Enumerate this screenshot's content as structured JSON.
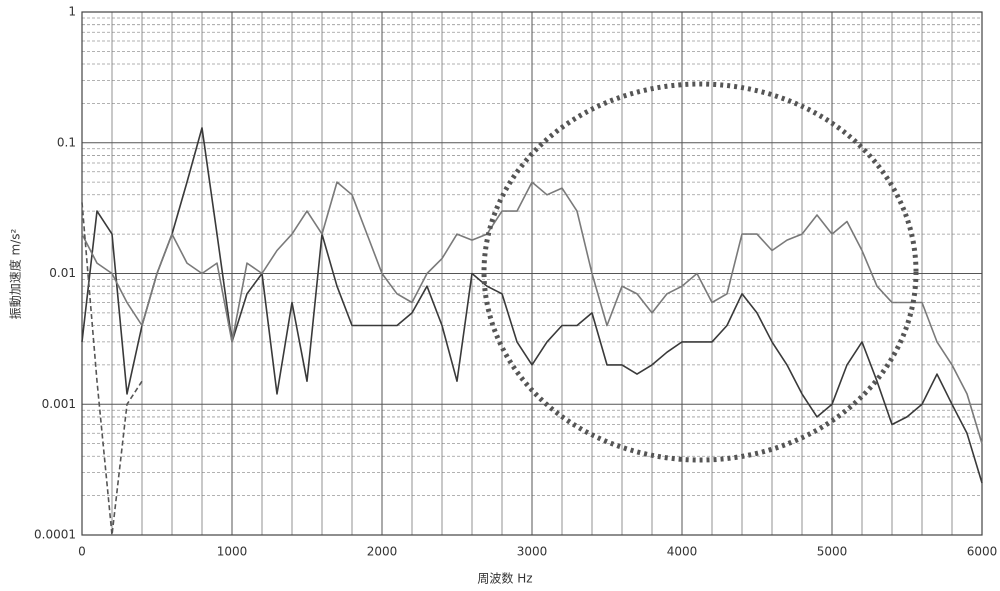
{
  "chart_data": {
    "type": "line",
    "xlabel": "周波数 Hz",
    "ylabel": "振動加速度 m/s²",
    "log_y": true,
    "grid": true,
    "minor_grid": true,
    "xlim": [
      0,
      6000
    ],
    "xticks": [
      0,
      1000,
      2000,
      3000,
      4000,
      5000,
      6000
    ],
    "ylim": [
      0.0001,
      1
    ],
    "yticks": [
      0.0001,
      0.001,
      0.01,
      0.1,
      1
    ],
    "x": [
      0,
      100,
      200,
      300,
      400,
      500,
      600,
      700,
      800,
      900,
      1000,
      1100,
      1200,
      1300,
      1400,
      1500,
      1600,
      1700,
      1800,
      1900,
      2000,
      2100,
      2200,
      2300,
      2400,
      2500,
      2600,
      2700,
      2800,
      2900,
      3000,
      3100,
      3200,
      3300,
      3400,
      3500,
      3600,
      3700,
      3800,
      3900,
      4000,
      4100,
      4200,
      4300,
      4400,
      4500,
      4600,
      4700,
      4800,
      4900,
      5000,
      5100,
      5200,
      5300,
      5400,
      5500,
      5600,
      5700,
      5800,
      5900,
      6000
    ],
    "series": [
      {
        "color": "#3a3a3a",
        "dash": "solid",
        "values": [
          0.003,
          0.03,
          0.02,
          0.0012,
          0.004,
          0.01,
          0.02,
          0.05,
          0.13,
          0.02,
          0.003,
          0.007,
          0.01,
          0.0012,
          0.006,
          0.0015,
          0.02,
          0.008,
          0.004,
          0.004,
          0.004,
          0.004,
          0.005,
          0.008,
          0.004,
          0.0015,
          0.01,
          0.008,
          0.007,
          0.003,
          0.002,
          0.003,
          0.004,
          0.004,
          0.005,
          0.002,
          0.002,
          0.0017,
          0.002,
          0.0025,
          0.003,
          0.003,
          0.003,
          0.004,
          0.007,
          0.005,
          0.003,
          0.002,
          0.0012,
          0.0008,
          0.001,
          0.002,
          0.003,
          0.0015,
          0.0007,
          0.0008,
          0.001,
          0.0017,
          0.001,
          0.0006,
          0.00025
        ]
      },
      {
        "color": "#7a7a7a",
        "dash": "solid",
        "values": [
          0.02,
          0.012,
          0.01,
          0.006,
          0.004,
          0.01,
          0.02,
          0.012,
          0.01,
          0.012,
          0.003,
          0.012,
          0.01,
          0.015,
          0.02,
          0.03,
          0.02,
          0.05,
          0.04,
          0.02,
          0.01,
          0.007,
          0.006,
          0.01,
          0.013,
          0.02,
          0.018,
          0.02,
          0.03,
          0.03,
          0.05,
          0.04,
          0.045,
          0.03,
          0.01,
          0.004,
          0.008,
          0.007,
          0.005,
          0.007,
          0.008,
          0.01,
          0.006,
          0.007,
          0.02,
          0.02,
          0.015,
          0.018,
          0.02,
          0.028,
          0.02,
          0.025,
          0.015,
          0.008,
          0.006,
          0.006,
          0.006,
          0.003,
          0.002,
          0.0012,
          0.0005
        ]
      },
      {
        "color": "#555555",
        "dash": "dashed",
        "values": [
          0.035,
          0.0015,
          0.0001,
          0.001,
          0.0015,
          null,
          null,
          null,
          null,
          null,
          null,
          null,
          null,
          null,
          null,
          null,
          null,
          null,
          null,
          null,
          null,
          null,
          null,
          null,
          null,
          null,
          null,
          null,
          null,
          null,
          null,
          null,
          null,
          null,
          null,
          null,
          null,
          null,
          null,
          null,
          null,
          null,
          null,
          null,
          null,
          null,
          null,
          null,
          null,
          null,
          null,
          null,
          null,
          null,
          null,
          null,
          null,
          null,
          null,
          null,
          null
        ]
      }
    ]
  }
}
